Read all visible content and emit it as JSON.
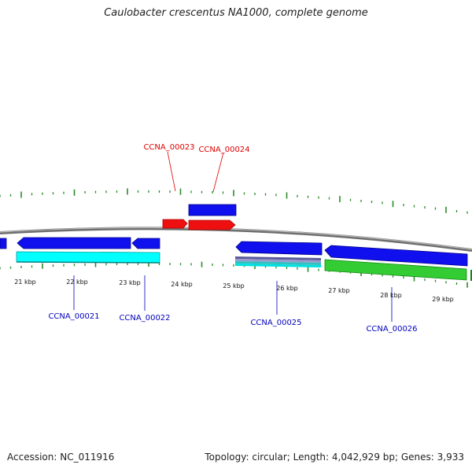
{
  "title": "Caulobacter crescentus NA1000, complete genome",
  "footer": {
    "accession": "Accession: NC_011916",
    "stats": "Topology: circular; Length: 4,042,929 bp; Genes: 3,933"
  },
  "colors": {
    "forward_cds": "#1010ee",
    "reverse_cds": "#1010ee",
    "red_features": "#ee1010",
    "cyan_feature": "#00ffff",
    "green_feature": "#33cc33",
    "backbone": "#7a7a7a",
    "ticks": "#2a8a2a",
    "label_forward": "#dd0000",
    "label_reverse": "#0000bb"
  },
  "scale": {
    "ticks_kbp": [
      "21 kbp",
      "22 kbp",
      "23 kbp",
      "24 kbp",
      "25 kbp",
      "26 kbp",
      "27 kbp",
      "28 kbp",
      "29 kbp"
    ]
  },
  "gene_labels": {
    "forward": [
      "CCNA_00023",
      "CCNA_00024"
    ],
    "reverse": [
      "CCNA_00021",
      "CCNA_00022",
      "CCNA_00025",
      "CCNA_00026"
    ]
  }
}
